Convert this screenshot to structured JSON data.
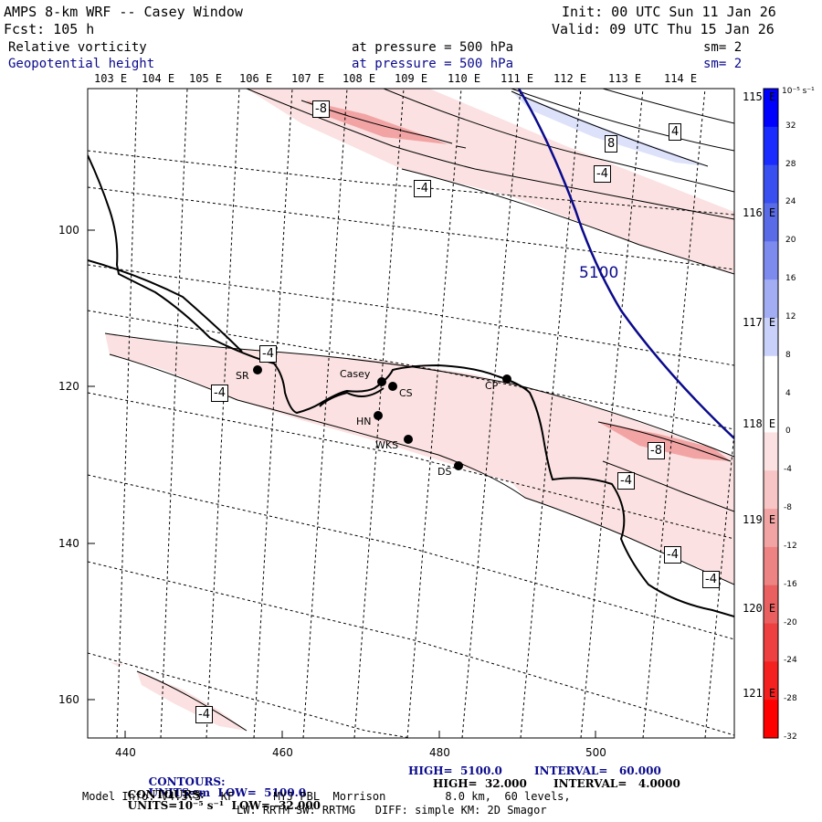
{
  "header": {
    "title": "AMPS 8-km WRF -- Casey Window",
    "init": "Init: 00 UTC Sun 11 Jan 26",
    "forecast": "Fcst: 105 h",
    "valid": "Valid: 09 UTC Thu 15 Jan 26",
    "field1": {
      "name": "Relative vorticity",
      "level": "at pressure = 500 hPa",
      "smooth": "sm= 2"
    },
    "field2": {
      "name": "Geopotential height",
      "level": "at pressure = 500 hPa",
      "smooth": "sm= 2"
    }
  },
  "top_longitudes": [
    "103 E",
    "104 E",
    "105 E",
    "106 E",
    "107 E",
    "108 E",
    "109 E",
    "110 E",
    "111 E",
    "112 E",
    "113 E",
    "114 E"
  ],
  "right_latitudes": [
    "115 E",
    "116 E",
    "117 E",
    "118 E",
    "119 E",
    "120 E",
    "121 E"
  ],
  "x_ticks": [
    "440",
    "460",
    "480",
    "500"
  ],
  "y_ticks": [
    "100",
    "120",
    "140",
    "160"
  ],
  "colorbar": {
    "unit": "10⁻⁵ s⁻¹",
    "labels": [
      "32",
      "28",
      "24",
      "20",
      "16",
      "12",
      "8",
      "4",
      "0",
      "-4",
      "-8",
      "-12",
      "-16",
      "-20",
      "-24",
      "-28",
      "-32"
    ],
    "colors": [
      "#0000ff",
      "#1a2bff",
      "#3a4fef",
      "#5a6be8",
      "#7d8aee",
      "#a3adf4",
      "#c9d0fa",
      "#ffffff",
      "#ffffff",
      "#fbe1e1",
      "#f7c5c5",
      "#f2a4a4",
      "#ee8383",
      "#ea6060",
      "#ee4040",
      "#f52020",
      "#ff0000"
    ]
  },
  "contour_labels": [
    "-8",
    "8",
    "4",
    "-4",
    "-4",
    "-4",
    "-4",
    "-8",
    "-4",
    "-4",
    "-4",
    "-4"
  ],
  "height_contour_label": "5100",
  "stations": [
    "SR",
    "Casey",
    "CS",
    "CP",
    "HN",
    "WKS",
    "DS"
  ],
  "footer": {
    "line1_prefix": "CONTOURS:",
    "line1": "UNITS=m  LOW=  5100.0",
    "line1_high": "HIGH=  5100.0",
    "line1_interval": "INTERVAL=   60.000",
    "line2_prefix": "CONTOURS:",
    "line2": "UNITS=10⁻⁵ s⁻¹  LOW= -32.000",
    "line2_high": "HIGH=  32.000",
    "line2_interval": "INTERVAL=   4.0000",
    "line3": "Model Info: V4.3.3   KF      MYJ PBL  Morrison         8.0 km,  60 levels,",
    "line4": "LW: RRTM SW: RRTMG   DIFF: simple KM: 2D Smagor"
  },
  "colors": {
    "coast": "#000000",
    "height_contour": "#0a0a8c",
    "neg_light": "#fbe1e1",
    "neg_mid": "#f2a4a4",
    "pos_light": "#dde2fa"
  }
}
